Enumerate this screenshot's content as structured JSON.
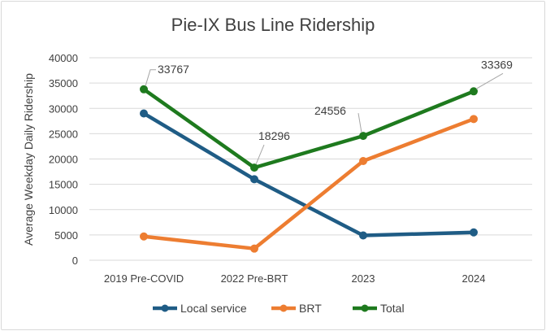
{
  "chart_data": {
    "type": "line",
    "title": "Pie-IX Bus Line Ridership",
    "xlabel": "",
    "ylabel": "Average Weekday Daily Ridership",
    "categories": [
      "2019 Pre-COVID",
      "2022 Pre-BRT",
      "2023",
      "2024"
    ],
    "ylim": [
      0,
      40000
    ],
    "yticks": [
      0,
      5000,
      10000,
      15000,
      20000,
      25000,
      30000,
      35000,
      40000
    ],
    "grid": true,
    "legend_position": "bottom",
    "series": [
      {
        "name": "Local service",
        "color": "#1f5c85",
        "values": [
          29000,
          16000,
          4900,
          5500
        ]
      },
      {
        "name": "BRT",
        "color": "#ed7d31",
        "values": [
          4700,
          2300,
          19600,
          27900
        ]
      },
      {
        "name": "Total",
        "color": "#1e7a1e",
        "values": [
          33767,
          18296,
          24556,
          33369
        ]
      }
    ],
    "data_labels": [
      "33767",
      "18296",
      "24556",
      "33369"
    ]
  }
}
